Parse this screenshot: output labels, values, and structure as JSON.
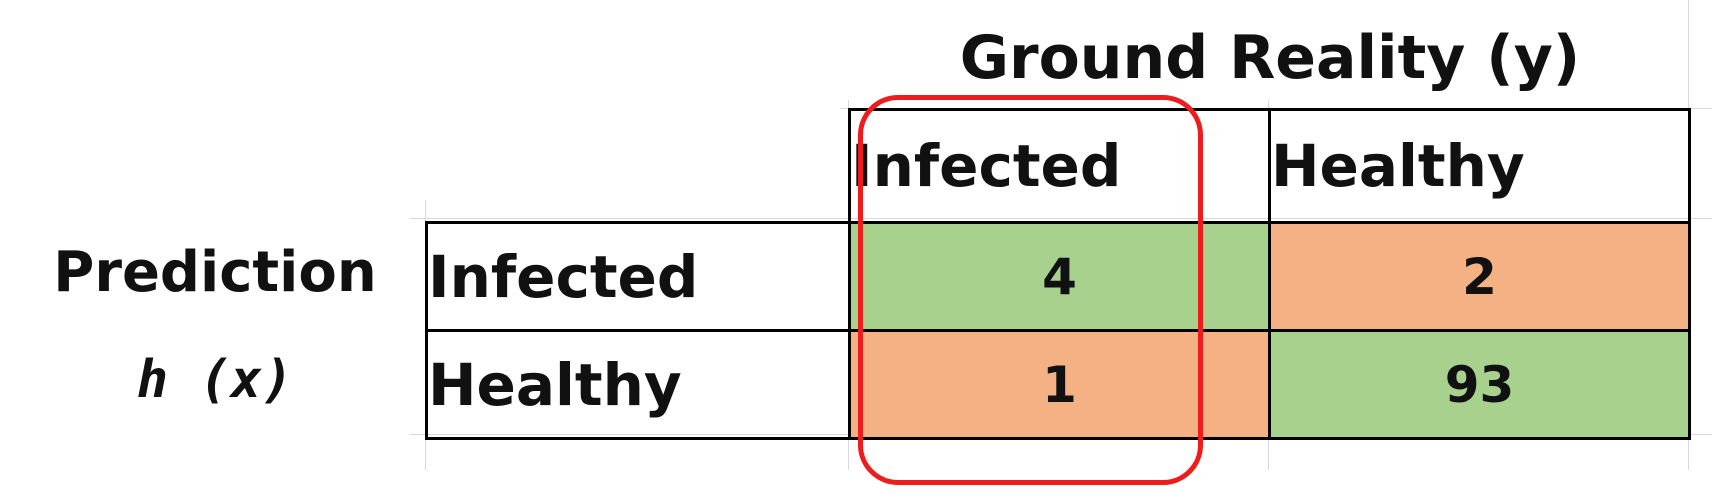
{
  "chart_data": {
    "type": "table",
    "title": "Ground Reality (y)",
    "column_headers": [
      "Infected",
      "Healthy"
    ],
    "row_axis_label": "Prediction",
    "row_axis_variable": "h (x)",
    "row_headers": [
      "Infected",
      "Healthy"
    ],
    "rows": [
      {
        "label": "Infected",
        "values": [
          4,
          2
        ],
        "colors": [
          "#a9d18e",
          "#f4b183"
        ]
      },
      {
        "label": "Healthy",
        "values": [
          1,
          93
        ],
        "colors": [
          "#f4b183",
          "#a9d18e"
        ]
      }
    ],
    "highlighted_column": "Infected",
    "colors": {
      "correct": "#a9d18e",
      "incorrect": "#f4b183",
      "highlight_border": "#ee1c1c"
    }
  }
}
